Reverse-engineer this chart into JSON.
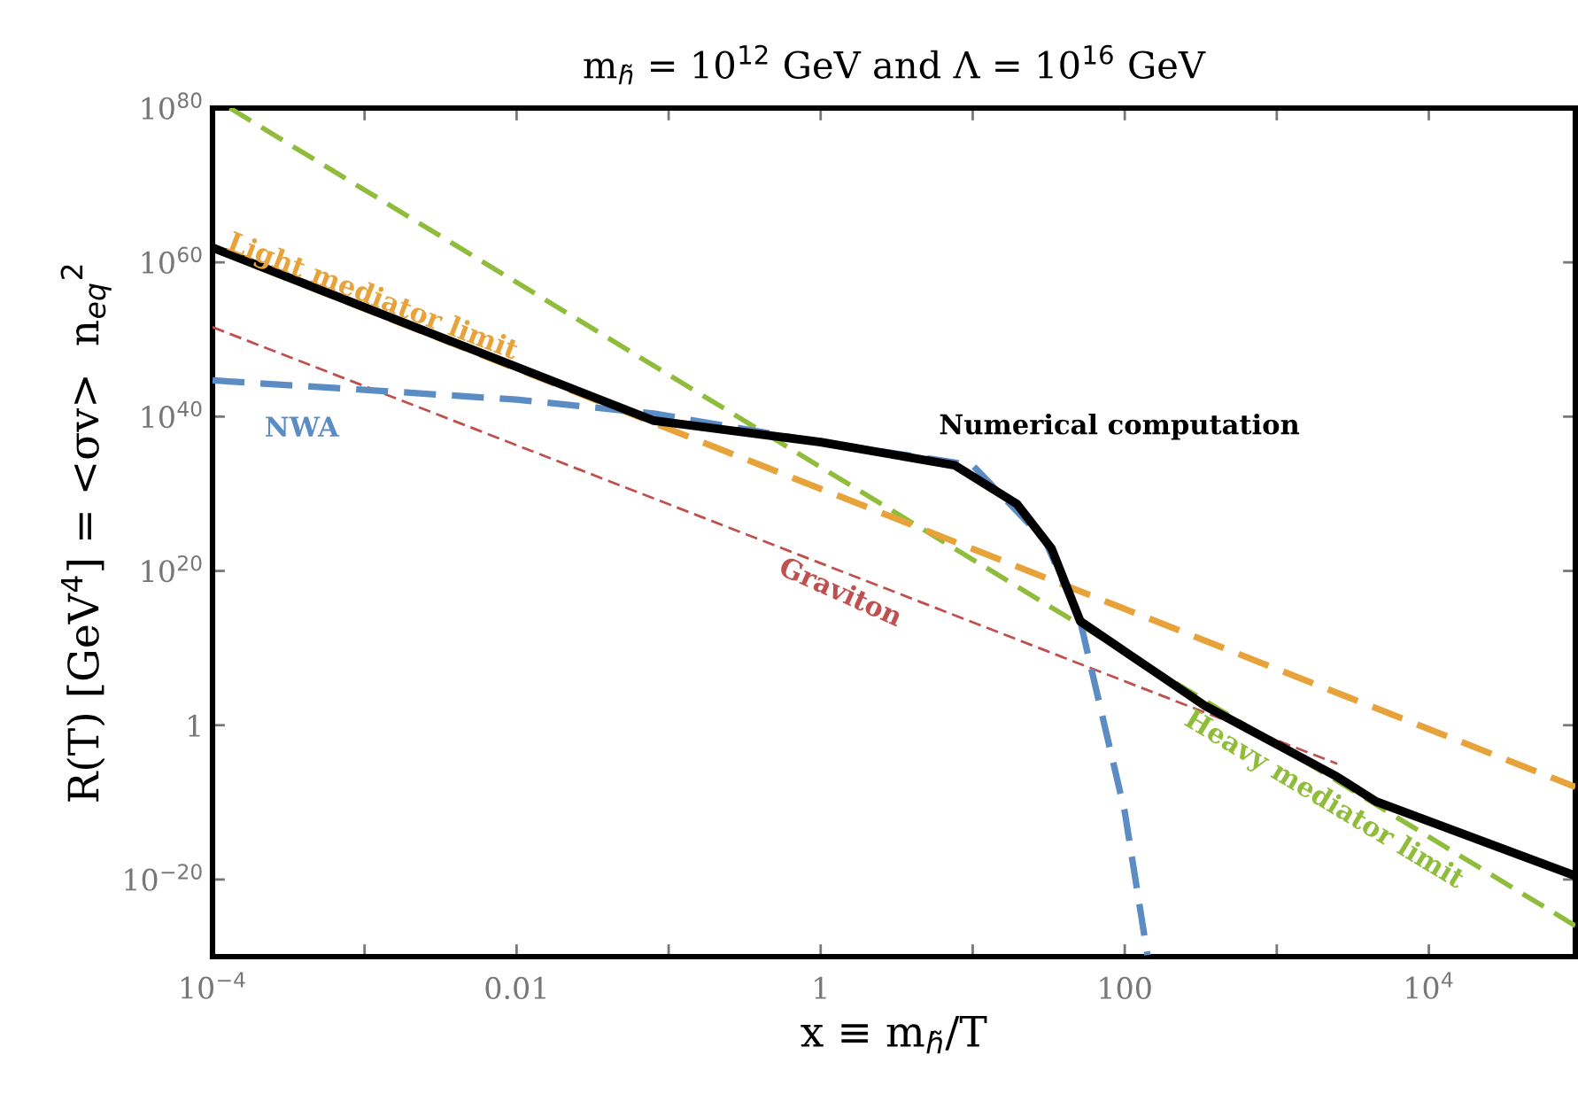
{
  "chart_data": {
    "type": "line",
    "title": "m$_{h̃}$ = 10$^{12}$ GeV and Λ = 10$^{16}$ GeV",
    "xlabel": "x ≡ m$_{h̃}$/T",
    "ylabel": "R(T) [GeV$^{4}$] = <σv>  n$_{eq}$$^{2}$",
    "log": "xy",
    "grid": false,
    "legend": false,
    "xlim": [
      0.0001,
      92000
    ],
    "ylim": [
      1e-30,
      1e+80
    ],
    "xticks": [
      {
        "value": 0.0001,
        "label": "10$^{−4}$"
      },
      {
        "value": 0.001,
        "label": null
      },
      0.01,
      {
        "value": 0.1,
        "label": null
      },
      1,
      {
        "value": 10,
        "label": null
      },
      100,
      {
        "value": 1000,
        "label": null
      },
      {
        "value": 10000,
        "label": "10$^{4}$"
      }
    ],
    "yticks": [
      {
        "value": 1e-20,
        "label": "10$^{−20}$"
      },
      1,
      {
        "value": 1e+20,
        "label": "10$^{20}$"
      },
      {
        "value": 1e+40,
        "label": "10$^{40}$"
      },
      {
        "value": 1e+60,
        "label": "10$^{60}$"
      },
      {
        "value": 1e+80,
        "label": "10$^{80}$"
      }
    ],
    "series": [
      {
        "name": "Heavy mediator limit",
        "color": "#8fbc3a",
        "line_style": "dashed",
        "x": [
          0.00013,
          92000
        ],
        "values": [
          1e+80,
          1e-26
        ]
      },
      {
        "name": "Light mediator limit",
        "color": "#e8a23a",
        "line_style": "dashed",
        "x": [
          0.0001,
          92000
        ],
        "values": [
          6e+61,
          1e-08
        ]
      },
      {
        "name": "Graviton",
        "color": "#c0504d",
        "line_style": "dashed",
        "x": [
          0.0001,
          2500
        ],
        "values": [
          4e+51,
          1e-05
        ]
      },
      {
        "name": "NWA",
        "color": "#5b8cc4",
        "line_style": "dashed",
        "x": [
          0.0001,
          0.001,
          0.01,
          0.08,
          1,
          10,
          30,
          51,
          63,
          100,
          141
        ],
        "values": [
          5e+44,
          3e+43,
          1.6e+42,
          2.5e+40,
          5e+36,
          5e+33,
          8e+23,
          30000000000000.0,
          500000.0,
          6e-12,
          1.6e-30
        ]
      },
      {
        "name": "Numerical computation",
        "color": "#000000",
        "line_style": "solid",
        "x": [
          0.0001,
          0.08,
          1,
          7.6,
          19.5,
          33,
          51,
          340,
          2500,
          4500,
          92000
        ],
        "values": [
          8e+61,
          3e+39,
          5e+36,
          5e+33,
          5e+28,
          8e+22,
          30000000000000.0,
          300.0,
          2e-07,
          1.3e-10,
          3e-20
        ]
      }
    ]
  }
}
